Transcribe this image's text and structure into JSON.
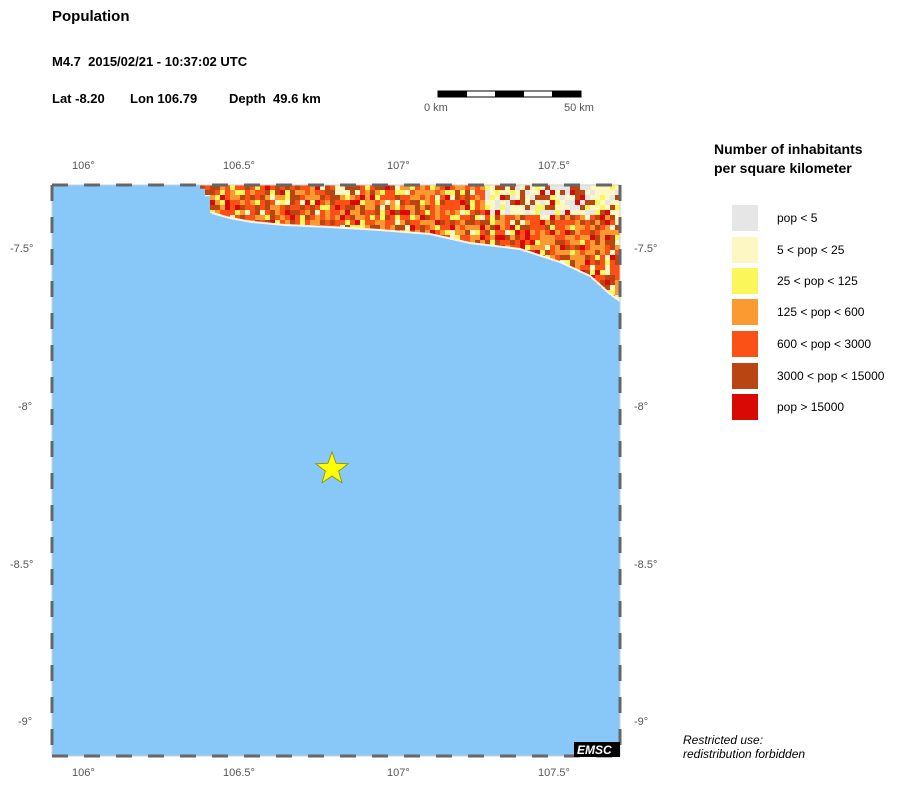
{
  "header": {
    "title": "Population",
    "event_line": "M4.7  2015/02/21 - 10:37:02 UTC",
    "lat_label": "Lat -8.20",
    "lon_label": "Lon 106.79",
    "depth_label": "Depth  49.6 km"
  },
  "scale_bar": {
    "start_label": "0 km",
    "end_label": "50 km"
  },
  "map": {
    "lon_ticks": [
      "106°",
      "106.5°",
      "107°",
      "107.5°"
    ],
    "lat_ticks": [
      "-7.5°",
      "-8°",
      "-8.5°",
      "-9°"
    ],
    "epicenter": {
      "lat": -8.2,
      "lon": 106.79
    },
    "sea_color": "#87c8f8",
    "epicenter_color": "#ffff00",
    "badge": "EMSC"
  },
  "legend": {
    "title_line1": "Number of inhabitants",
    "title_line2": "per square kilometer",
    "items": [
      {
        "label": "pop < 5",
        "color": "#e6e6e6"
      },
      {
        "label": "5 < pop < 25",
        "color": "#fdf8c3"
      },
      {
        "label": "25 < pop < 125",
        "color": "#fbf75a"
      },
      {
        "label": "125 < pop < 600",
        "color": "#fb9a30"
      },
      {
        "label": "600 < pop < 3000",
        "color": "#fb5016"
      },
      {
        "label": "3000 < pop < 15000",
        "color": "#b84512"
      },
      {
        "label": "pop > 15000",
        "color": "#d90a06"
      }
    ]
  },
  "footer_note": {
    "line1": "Restricted use:",
    "line2": "redistribution forbidden"
  }
}
